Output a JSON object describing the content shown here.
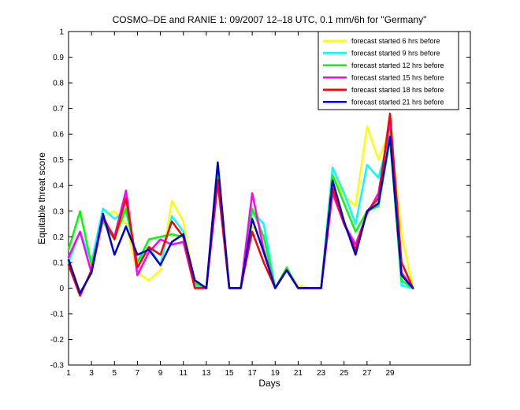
{
  "chart_data": {
    "type": "line",
    "title": "COSMO–DE and RANIE 1: 09/2007 12–18 UTC, 0.1 mm/6h for \"Germany\"",
    "xlabel": "Days",
    "ylabel": "Equitable threat score",
    "xlim": [
      1,
      36
    ],
    "ylim": [
      -0.3,
      1
    ],
    "xticks": [
      1,
      3,
      5,
      7,
      9,
      11,
      13,
      15,
      17,
      19,
      21,
      23,
      25,
      27,
      29
    ],
    "xtick_labels": [
      "1",
      "3",
      "5",
      "7",
      "9",
      "11",
      "13",
      "15",
      "17",
      "19",
      "21",
      "23",
      "25",
      "27",
      "29"
    ],
    "yticks": [
      -0.3,
      -0.2,
      -0.1,
      0,
      0.1,
      0.2,
      0.3,
      0.4,
      0.5,
      0.6,
      0.7,
      0.8,
      0.9,
      1
    ],
    "ytick_labels": [
      "-0.3",
      "-0.2",
      "-0.1",
      "0",
      "0.1",
      "0.2",
      "0.3",
      "0.4",
      "0.5",
      "0.6",
      "0.7",
      "0.8",
      "0.9",
      "1"
    ],
    "grid": false,
    "legend_position": "top-right",
    "x": [
      1,
      2,
      3,
      4,
      5,
      6,
      7,
      8,
      9,
      10,
      11,
      12,
      13,
      14,
      15,
      16,
      17,
      18,
      19,
      20,
      21,
      22,
      23,
      24,
      25,
      26,
      27,
      28,
      29,
      30,
      31
    ],
    "series": [
      {
        "name": "forecast started 6 hrs before",
        "color": "#ffff00",
        "values": [
          0.12,
          -0.02,
          0.06,
          0.28,
          0.3,
          0.25,
          0.06,
          0.03,
          0.07,
          0.34,
          0.26,
          0.01,
          0.0,
          0.48,
          0.0,
          0.0,
          0.24,
          0.2,
          0.0,
          0.07,
          0.01,
          0.0,
          0.0,
          0.44,
          0.36,
          0.32,
          0.63,
          0.5,
          0.62,
          0.21,
          0.0
        ]
      },
      {
        "name": "forecast started 9 hrs before",
        "color": "#00ffff",
        "values": [
          0.1,
          0.22,
          0.1,
          0.31,
          0.27,
          0.3,
          0.1,
          0.16,
          0.09,
          0.28,
          0.22,
          0.01,
          0.0,
          0.44,
          0.0,
          0.0,
          0.3,
          0.25,
          0.0,
          0.07,
          0.0,
          0.0,
          0.0,
          0.47,
          0.37,
          0.25,
          0.48,
          0.43,
          0.6,
          0.01,
          0.0
        ]
      },
      {
        "name": "forecast started 12 hrs before",
        "color": "#00ff00",
        "values": [
          0.15,
          0.3,
          0.09,
          0.26,
          0.19,
          0.31,
          0.1,
          0.19,
          0.2,
          0.21,
          0.2,
          0.02,
          0.0,
          0.43,
          0.0,
          0.0,
          0.31,
          0.2,
          0.0,
          0.08,
          0.0,
          0.0,
          0.0,
          0.44,
          0.33,
          0.22,
          0.3,
          0.32,
          0.58,
          0.03,
          0.0
        ]
      },
      {
        "name": "forecast started 15 hrs before",
        "color": "#ff00ff",
        "values": [
          0.12,
          0.22,
          0.06,
          0.27,
          0.2,
          0.38,
          0.05,
          0.14,
          0.19,
          0.17,
          0.18,
          0.0,
          0.0,
          0.41,
          0.0,
          0.0,
          0.37,
          0.15,
          0.0,
          0.07,
          0.0,
          0.0,
          0.0,
          0.37,
          0.25,
          0.17,
          0.29,
          0.37,
          0.65,
          0.06,
          0.0
        ]
      },
      {
        "name": "forecast started 18 hrs before",
        "color": "#ff0000",
        "values": [
          0.09,
          -0.03,
          0.07,
          0.28,
          0.19,
          0.35,
          0.08,
          0.16,
          0.13,
          0.26,
          0.2,
          0.0,
          0.0,
          0.42,
          0.0,
          0.0,
          0.22,
          0.1,
          0.0,
          0.07,
          0.0,
          0.0,
          0.0,
          0.39,
          0.25,
          0.15,
          0.3,
          0.35,
          0.68,
          0.1,
          0.0
        ]
      },
      {
        "name": "forecast started 21 hrs before",
        "color": "#0000cc",
        "values": [
          0.11,
          -0.02,
          0.06,
          0.29,
          0.13,
          0.24,
          0.13,
          0.15,
          0.09,
          0.18,
          0.21,
          0.03,
          0.0,
          0.49,
          0.0,
          0.0,
          0.27,
          0.14,
          0.0,
          0.07,
          0.0,
          0.0,
          0.0,
          0.42,
          0.26,
          0.13,
          0.3,
          0.33,
          0.59,
          0.05,
          0.0
        ]
      }
    ]
  }
}
